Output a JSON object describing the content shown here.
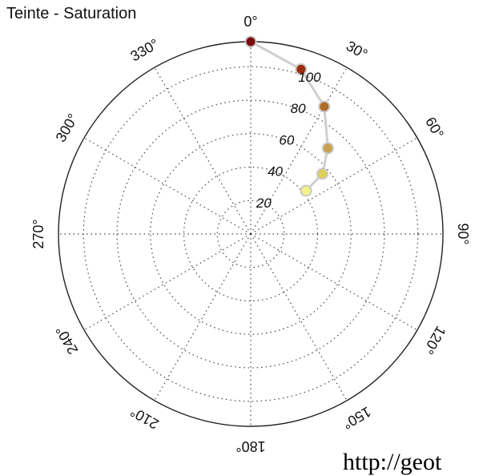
{
  "chart_data": {
    "type": "polar-line",
    "title": "Teinte - Saturation",
    "angle_unit": "degrees",
    "angle_zero": "top",
    "angle_direction": "clockwise",
    "r_range": [
      0,
      115
    ],
    "r_ticks": [
      {
        "value": 20,
        "label": "20"
      },
      {
        "value": 40,
        "label": "40"
      },
      {
        "value": 60,
        "label": "60"
      },
      {
        "value": 80,
        "label": "80"
      },
      {
        "value": 100,
        "label": "100"
      }
    ],
    "angle_ticks": [
      {
        "value": 0,
        "label": "0°"
      },
      {
        "value": 30,
        "label": "30°"
      },
      {
        "value": 60,
        "label": "60°"
      },
      {
        "value": 90,
        "label": "90°"
      },
      {
        "value": 120,
        "label": "120°"
      },
      {
        "value": 150,
        "label": "150°"
      },
      {
        "value": 180,
        "label": "180°"
      },
      {
        "value": 210,
        "label": "210°"
      },
      {
        "value": 240,
        "label": "240°"
      },
      {
        "value": 270,
        "label": "270°"
      },
      {
        "value": 300,
        "label": "300°"
      },
      {
        "value": 330,
        "label": "330°"
      }
    ],
    "grid": true,
    "series": [
      {
        "points": [
          {
            "theta": 0,
            "r": 115,
            "color": "#7a0a0a"
          },
          {
            "theta": 17,
            "r": 103,
            "color": "#9a2d0c"
          },
          {
            "theta": 30,
            "r": 88,
            "color": "#b06b26"
          },
          {
            "theta": 42,
            "r": 69,
            "color": "#c9a050"
          },
          {
            "theta": 50,
            "r": 56,
            "color": "#dcd05c"
          },
          {
            "theta": 52,
            "r": 42,
            "color": "#f1f38a"
          }
        ]
      }
    ]
  },
  "footer_text": "http://geot"
}
